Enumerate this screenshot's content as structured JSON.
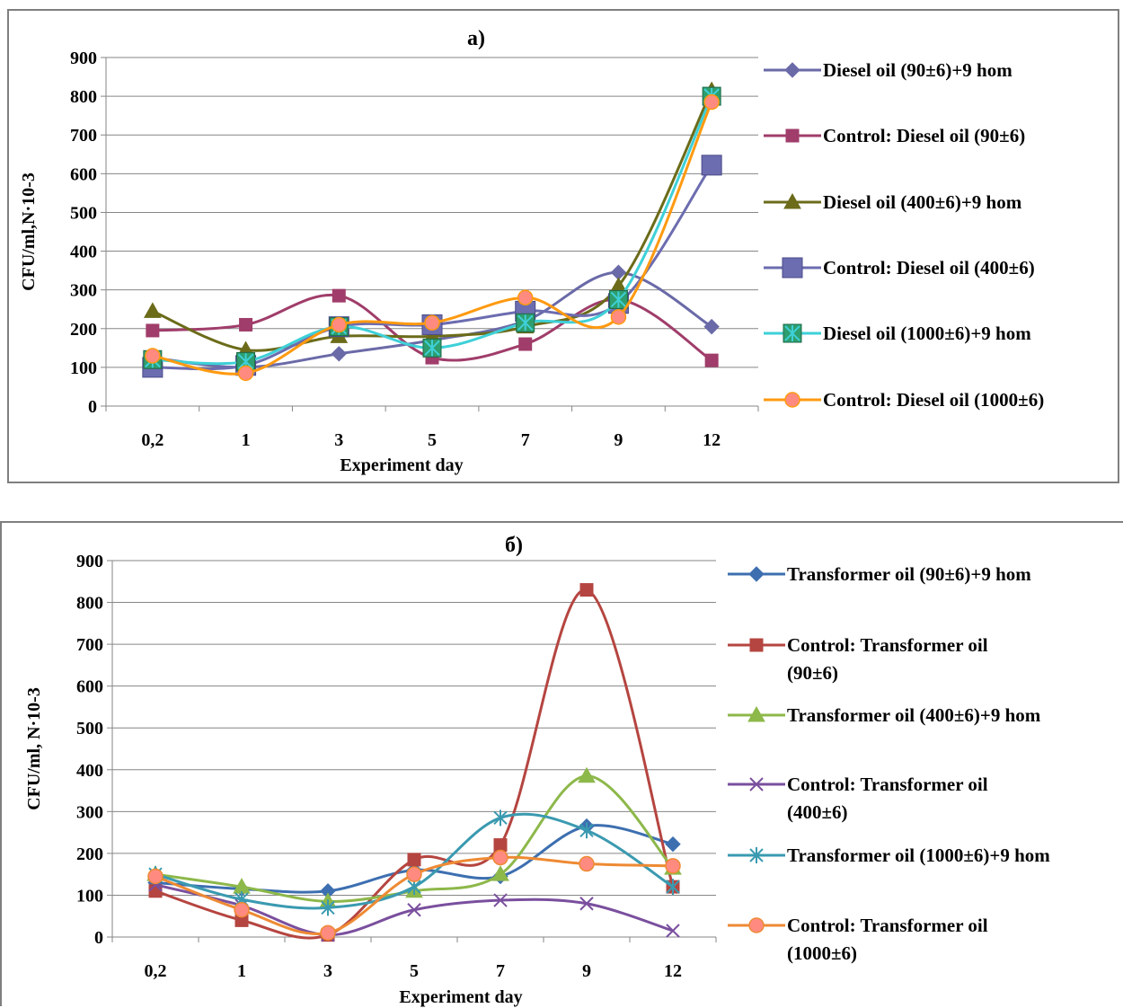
{
  "chart_data": [
    {
      "type": "line",
      "title": "a)",
      "xlabel": "Experiment day",
      "ylabel": "CFU/ml,N·10-3",
      "categories": [
        "0,2",
        "1",
        "3",
        "5",
        "7",
        "9",
        "12"
      ],
      "ylim": [
        0,
        900
      ],
      "yticks": [
        "0",
        "100",
        "200",
        "300",
        "400",
        "500",
        "600",
        "700",
        "800",
        "900"
      ],
      "grid": true,
      "legend_position": "right",
      "series": [
        {
          "name": "Diesel oil (90±6)+9 hom",
          "color": "#6a6aa8",
          "marker": "diamond",
          "values": [
            125,
            100,
            135,
            170,
            220,
            345,
            205
          ]
        },
        {
          "name": "Control: Diesel oil (90±6)",
          "color": "#a03d6a",
          "marker": "square",
          "values": [
            195,
            210,
            285,
            125,
            160,
            275,
            118
          ]
        },
        {
          "name": "Diesel oil (400±6)+9 hom",
          "color": "#6b6b1a",
          "marker": "triangle",
          "values": [
            245,
            145,
            180,
            180,
            205,
            310,
            815
          ]
        },
        {
          "name": "Control: Diesel oil (400±6)",
          "color": "#6c6cb0",
          "marker": "bigsquare",
          "values": [
            100,
            105,
            205,
            210,
            245,
            265,
            622
          ]
        },
        {
          "name": "Diesel oil (1000±6)+9 hom",
          "color": "#3ed0d8",
          "marker": "squarestar",
          "values": [
            120,
            115,
            205,
            150,
            215,
            275,
            800
          ]
        },
        {
          "name": "Control: Diesel oil (1000±6)",
          "color": "#ff9a10",
          "marker": "circle",
          "values": [
            130,
            85,
            210,
            215,
            280,
            230,
            785
          ]
        }
      ]
    },
    {
      "type": "line",
      "title": "б)",
      "xlabel": "Experiment day",
      "ylabel": "CFU/ml, N·10-3",
      "categories": [
        "0,2",
        "1",
        "3",
        "5",
        "7",
        "9",
        "12"
      ],
      "ylim": [
        0,
        900
      ],
      "yticks": [
        "0",
        "100",
        "200",
        "300",
        "400",
        "500",
        "600",
        "700",
        "800",
        "900"
      ],
      "grid": true,
      "legend_position": "right",
      "series": [
        {
          "name": "Transformer oil (90±6)+9 hom",
          "color": "#3d6fb0",
          "marker": "diamond",
          "values": [
            130,
            115,
            110,
            160,
            145,
            265,
            222
          ]
        },
        {
          "name": "Control: Transformer oil (90±6)",
          "color": "#b54540",
          "marker": "square",
          "values": [
            110,
            40,
            5,
            185,
            220,
            830,
            120
          ]
        },
        {
          "name": "Transformer oil (400±6)+9 hom",
          "color": "#8db84a",
          "marker": "triangle",
          "values": [
            150,
            120,
            85,
            110,
            150,
            385,
            165
          ]
        },
        {
          "name": "Control: Transformer oil (400±6)",
          "color": "#7a4f9e",
          "marker": "x",
          "values": [
            125,
            75,
            5,
            65,
            88,
            80,
            15
          ]
        },
        {
          "name": "Transformer oil (1000±6)+9 hom",
          "color": "#3a9ab0",
          "marker": "star",
          "values": [
            150,
            90,
            70,
            120,
            285,
            255,
            120
          ]
        },
        {
          "name": "Control: Transformer oil (1000±6)",
          "color": "#ee8a33",
          "marker": "circle",
          "values": [
            145,
            65,
            10,
            150,
            190,
            175,
            170
          ]
        }
      ]
    }
  ]
}
